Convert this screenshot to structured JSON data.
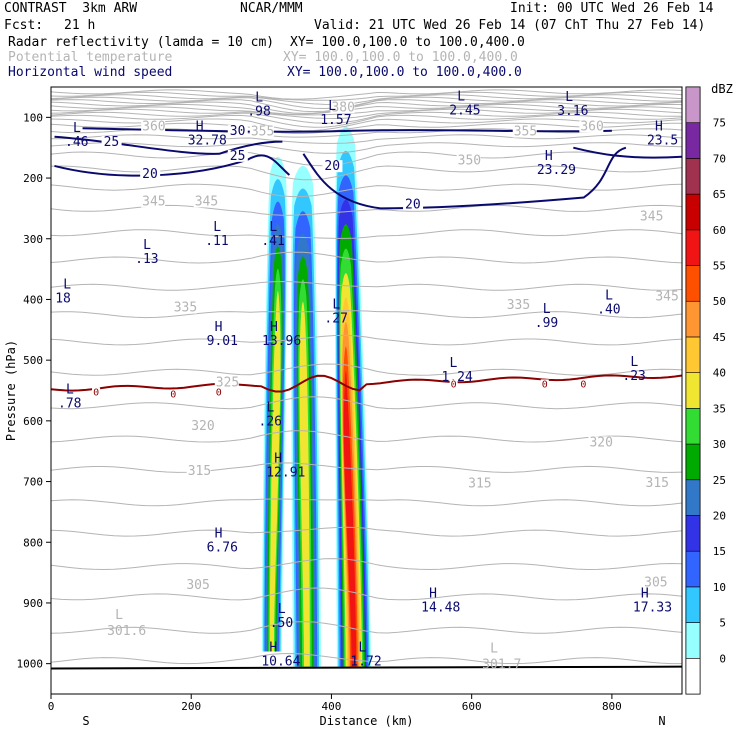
{
  "header": {
    "model": "CONTRAST  3km ARW",
    "org": "NCAR/MMM",
    "init": "Init: 00 UTC Wed 26 Feb 14",
    "fcst_label": "Fcst:",
    "fcst_value": "21 h",
    "valid": "Valid: 21 UTC Wed 26 Feb 14 (07 ChT Thu 27 Feb 14)"
  },
  "fields": [
    {
      "label": "Radar reflectivity (lamda = 10 cm)",
      "xy": "XY= 100.0,100.0 to 100.0,400.0",
      "color": "#000000"
    },
    {
      "label": "Potential temperature",
      "xy": "XY= 100.0,100.0 to 100.0,400.0",
      "color": "#b4b4b4"
    },
    {
      "label": "Horizontal wind speed",
      "xy": "XY= 100.0,100.0 to 100.0,400.0",
      "color": "#0a0a6e"
    }
  ],
  "chart_data": {
    "type": "cross-section",
    "xlabel": "Distance (km)",
    "ylabel": "Pressure (hPa)",
    "xlim": [
      0,
      900
    ],
    "ylim": [
      1050,
      50
    ],
    "xticks": [
      0,
      200,
      400,
      600,
      800
    ],
    "yticks": [
      100,
      200,
      300,
      400,
      500,
      600,
      700,
      800,
      900,
      1000
    ],
    "x_end_labels": {
      "left": "S",
      "right": "N"
    },
    "colorbar": {
      "units": "dBZ",
      "levels": [
        "0",
        "5",
        "10",
        "15",
        "20",
        "25",
        "30",
        "35",
        "40",
        "45",
        "50",
        "55",
        "60",
        "65",
        "70",
        "75"
      ],
      "colors": [
        "#ffffff",
        "#96ffff",
        "#32c8ff",
        "#3264ff",
        "#3232e6",
        "#3278c8",
        "#00aa00",
        "#32dc32",
        "#f0e632",
        "#ffc832",
        "#ff9632",
        "#ff5000",
        "#f01414",
        "#c80000",
        "#a03250",
        "#7828a0",
        "#c896c8"
      ]
    },
    "theta_labels": [
      {
        "text": "380",
        "x": 400,
        "p": 90
      },
      {
        "text": "360",
        "x": 130,
        "p": 122
      },
      {
        "text": "355",
        "x": 285,
        "p": 130
      },
      {
        "text": "360",
        "x": 755,
        "p": 122
      },
      {
        "text": "355",
        "x": 660,
        "p": 130
      },
      {
        "text": "350",
        "x": 580,
        "p": 178
      },
      {
        "text": "345",
        "x": 130,
        "p": 245
      },
      {
        "text": "345",
        "x": 205,
        "p": 245
      },
      {
        "text": "345",
        "x": 840,
        "p": 270
      },
      {
        "text": "335",
        "x": 175,
        "p": 420
      },
      {
        "text": "335",
        "x": 650,
        "p": 416
      },
      {
        "text": "345",
        "x": 862,
        "p": 402
      },
      {
        "text": "325",
        "x": 235,
        "p": 543
      },
      {
        "text": "320",
        "x": 200,
        "p": 615
      },
      {
        "text": "320",
        "x": 768,
        "p": 642
      },
      {
        "text": "315",
        "x": 195,
        "p": 689
      },
      {
        "text": "315",
        "x": 595,
        "p": 710
      },
      {
        "text": "315",
        "x": 848,
        "p": 709
      },
      {
        "text": "305",
        "x": 193,
        "p": 877
      },
      {
        "text": "305",
        "x": 846,
        "p": 873
      }
    ],
    "theta_extremes": [
      {
        "kind": "L",
        "value": "301.6",
        "x": 80,
        "p": 943
      },
      {
        "kind": "L",
        "value": "301.7",
        "x": 615,
        "p": 998
      }
    ],
    "wind_labels": [
      {
        "text": "25",
        "x": 75,
        "p": 147
      },
      {
        "text": "30",
        "x": 255,
        "p": 129
      },
      {
        "text": "25",
        "x": 255,
        "p": 170
      },
      {
        "text": "20",
        "x": 130,
        "p": 200
      },
      {
        "text": "20",
        "x": 390,
        "p": 187
      },
      {
        "text": "20",
        "x": 505,
        "p": 250
      }
    ],
    "wind_extremes": [
      {
        "kind": "L",
        "value": ".98",
        "x": 280,
        "p": 97
      },
      {
        "kind": "L",
        "value": "2.45",
        "x": 568,
        "p": 95
      },
      {
        "kind": "L",
        "value": "3.16",
        "x": 722,
        "p": 96
      },
      {
        "kind": "L",
        "value": "1.57",
        "x": 384,
        "p": 111
      },
      {
        "kind": "H",
        "value": "32.78",
        "x": 195,
        "p": 145
      },
      {
        "kind": "H",
        "value": "23.5",
        "x": 850,
        "p": 145
      },
      {
        "kind": "L",
        "value": ".46",
        "x": 20,
        "p": 147
      },
      {
        "kind": "H",
        "value": "23.29",
        "x": 693,
        "p": 193
      },
      {
        "kind": "L",
        "value": ".11",
        "x": 220,
        "p": 310
      },
      {
        "kind": "L",
        "value": ".41",
        "x": 300,
        "p": 310
      },
      {
        "kind": "L",
        "value": ".13",
        "x": 120,
        "p": 340
      },
      {
        "kind": "L",
        "value": ".27",
        "x": 390,
        "p": 438
      },
      {
        "kind": "L",
        "value": ".99",
        "x": 690,
        "p": 445
      },
      {
        "kind": "L",
        "value": ".40",
        "x": 779,
        "p": 423
      },
      {
        "kind": "L",
        "value": "18",
        "x": 6,
        "p": 405
      },
      {
        "kind": "H",
        "value": "9.01",
        "x": 222,
        "p": 475
      },
      {
        "kind": "H",
        "value": "13.96",
        "x": 301,
        "p": 475
      },
      {
        "kind": "L",
        "value": "1.24",
        "x": 557,
        "p": 534
      },
      {
        "kind": "L",
        "value": ".23",
        "x": 815,
        "p": 533
      },
      {
        "kind": "L",
        "value": ".78",
        "x": 10,
        "p": 578
      },
      {
        "kind": "L",
        "value": ".26",
        "x": 296,
        "p": 608
      },
      {
        "kind": "H",
        "value": "12.91",
        "x": 307,
        "p": 692
      },
      {
        "kind": "H",
        "value": "6.76",
        "x": 222,
        "p": 815
      },
      {
        "kind": "H",
        "value": "14.48",
        "x": 528,
        "p": 914
      },
      {
        "kind": "H",
        "value": "17.33",
        "x": 830,
        "p": 914
      },
      {
        "kind": "L",
        "value": ".50",
        "x": 312,
        "p": 940
      },
      {
        "kind": "H",
        "value": "10.64",
        "x": 300,
        "p": 1003
      },
      {
        "kind": "L",
        "value": "1.72",
        "x": 427,
        "p": 1003
      }
    ],
    "zero_line_labels": [
      {
        "text": "0",
        "x": 60,
        "p": 553
      },
      {
        "text": "0",
        "x": 235,
        "p": 553
      },
      {
        "text": "0",
        "x": 170,
        "p": 557
      },
      {
        "text": "0",
        "x": 570,
        "p": 540
      },
      {
        "text": "0",
        "x": 755,
        "p": 540
      },
      {
        "text": "0",
        "x": 700,
        "p": 540
      }
    ]
  }
}
